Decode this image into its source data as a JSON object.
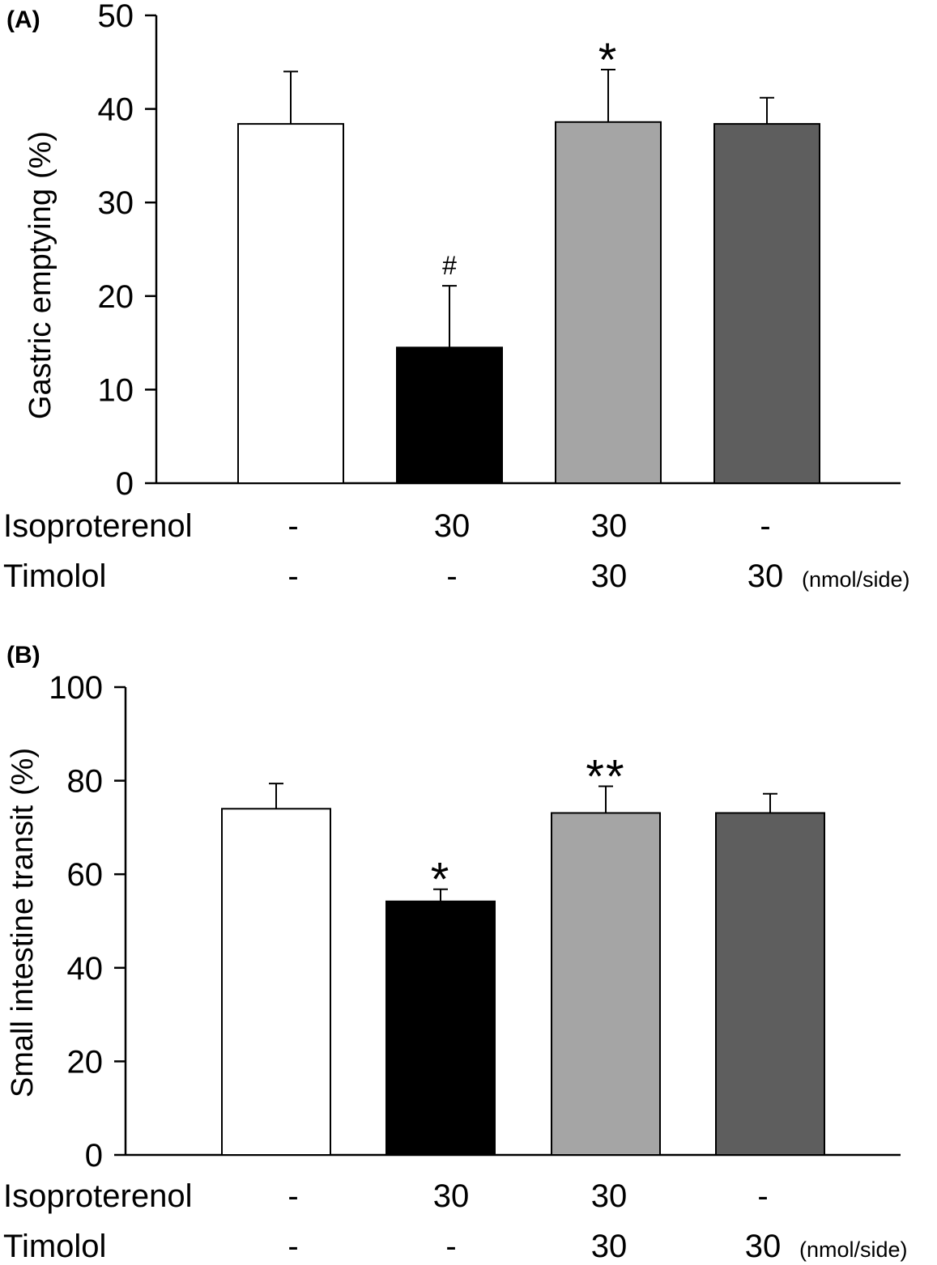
{
  "chart_data": [
    {
      "panel": "(A)",
      "type": "bar",
      "ylabel": "Gastric emptying",
      "ylabel_unit": "(%)",
      "ylim": [
        0,
        50
      ],
      "yticks": [
        0,
        10,
        20,
        30,
        40,
        50
      ],
      "values": [
        38.4,
        14.5,
        38.6,
        38.4
      ],
      "errors": [
        5.6,
        6.6,
        5.6,
        2.8
      ],
      "colors": [
        "#ffffff",
        "#000000",
        "#a5a5a5",
        "#5e5e5e"
      ],
      "annotations": [
        "",
        "#",
        "*",
        ""
      ],
      "rows": [
        {
          "label": "Isoproterenol",
          "values": [
            "-",
            "30",
            "30",
            "-"
          ]
        },
        {
          "label": "Timolol",
          "values": [
            "-",
            "-",
            "30",
            "30"
          ]
        }
      ],
      "unit": "(nmol/side)"
    },
    {
      "panel": "(B)",
      "type": "bar",
      "ylabel": "Small intestine transit",
      "ylabel_unit": "(%)",
      "ylim": [
        0,
        100
      ],
      "yticks": [
        0,
        20,
        40,
        60,
        80,
        100
      ],
      "values": [
        74.0,
        54.2,
        73.1,
        73.1
      ],
      "errors": [
        5.4,
        2.6,
        5.7,
        4.1
      ],
      "colors": [
        "#ffffff",
        "#000000",
        "#a5a5a5",
        "#5e5e5e"
      ],
      "annotations": [
        "",
        "*",
        "**",
        ""
      ],
      "rows": [
        {
          "label": "Isoproterenol",
          "values": [
            "-",
            "30",
            "30",
            "-"
          ]
        },
        {
          "label": "Timolol",
          "values": [
            "-",
            "-",
            "30",
            "30"
          ]
        }
      ],
      "unit": "(nmol/side)"
    }
  ]
}
